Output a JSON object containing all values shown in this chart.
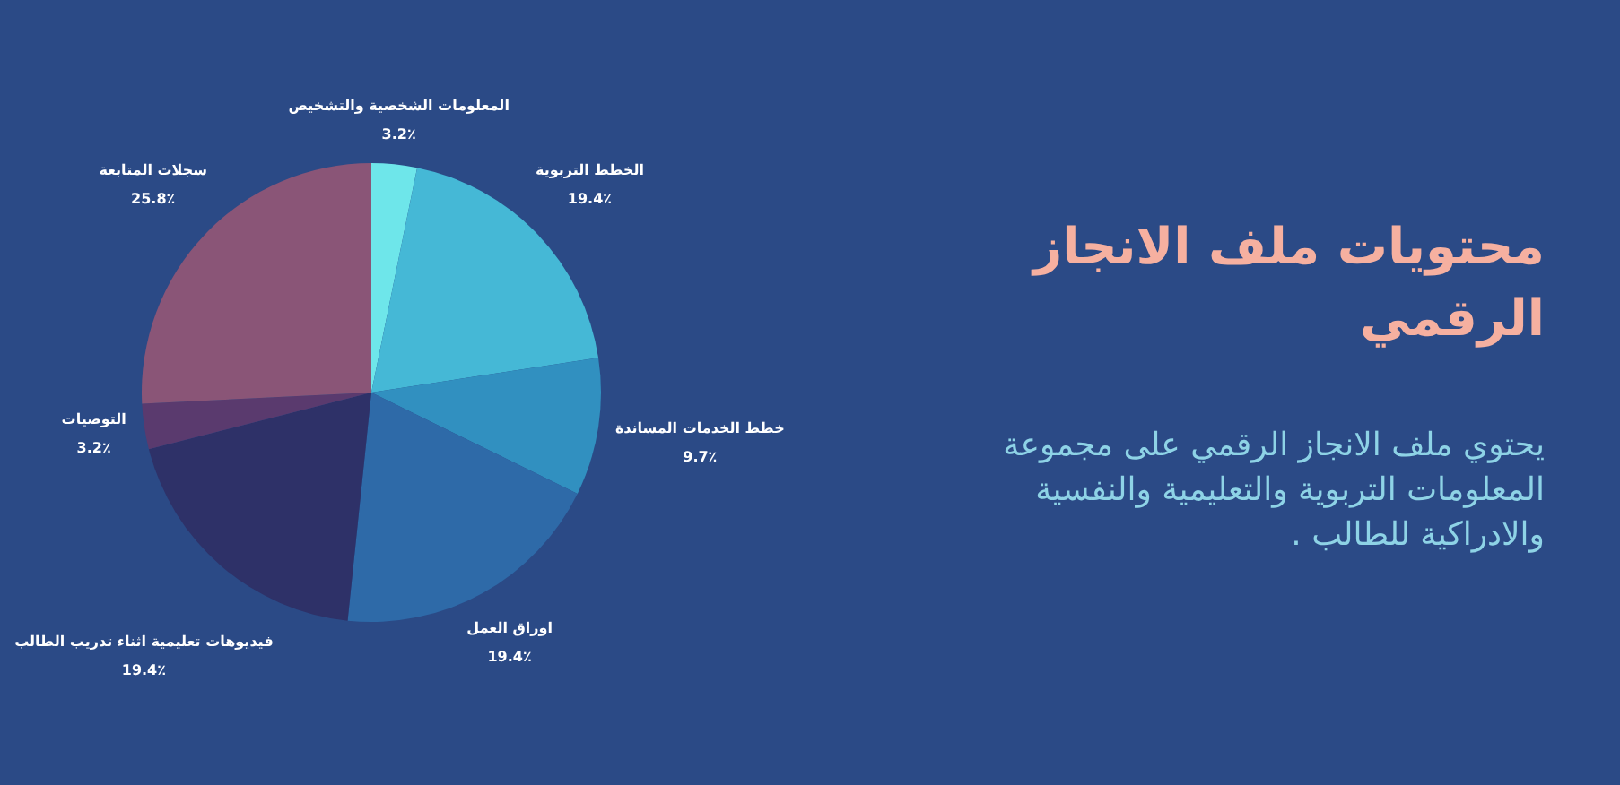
{
  "chart_data": {
    "type": "pie",
    "title": "محتويات ملف الانجاز الرقمي",
    "subtitle": "يحتوي ملف الانجاز الرقمي على مجموعة المعلومات التربوية والتعليمية والنفسية والادراكية للطالب .",
    "categories": [
      "المعلومات الشخصية والتشخيص",
      "الخطط التربوية",
      "خطط الخدمات المساندة",
      "اوراق العمل",
      "فيديوهات تعليمية اثناء تدريب الطالب",
      "التوصيات",
      "سجلات المتابعة"
    ],
    "values": [
      3.2,
      19.4,
      9.7,
      19.4,
      19.4,
      3.2,
      25.8
    ],
    "colors": [
      "#6ee6ea",
      "#45b8d6",
      "#3190c0",
      "#2e6aa8",
      "#2e3168",
      "#5a3a6e",
      "#8a5577"
    ],
    "value_labels": [
      "3.2٪",
      "19.4٪",
      "9.7٪",
      "19.4٪",
      "19.4٪",
      "3.2٪",
      "25.8٪"
    ]
  }
}
